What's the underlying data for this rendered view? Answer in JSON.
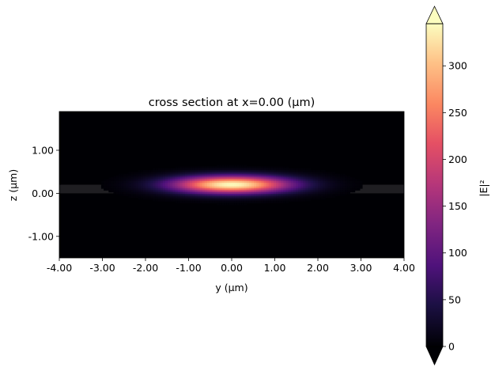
{
  "chart_data": {
    "type": "heatmap",
    "title": "cross section at x=0.00 (μm)",
    "xlabel": "y (μm)",
    "ylabel": "z (μm)",
    "xlim": [
      -4.0,
      4.0
    ],
    "ylim": [
      -1.5,
      1.9
    ],
    "xticks": [
      -4.0,
      -3.0,
      -2.0,
      -1.0,
      0.0,
      1.0,
      2.0,
      3.0,
      4.0
    ],
    "xtick_labels": [
      "-4.00",
      "-3.00",
      "-2.00",
      "-1.00",
      "0.00",
      "1.00",
      "2.00",
      "3.00",
      "4.00"
    ],
    "yticks": [
      -1.0,
      0.0,
      1.0
    ],
    "ytick_labels": [
      "-1.00",
      "0.00",
      "1.00"
    ],
    "colorbar": {
      "label": "|E|²",
      "range": [
        0,
        345
      ],
      "ticks": [
        0,
        50,
        100,
        150,
        200,
        250,
        300
      ],
      "tick_labels": [
        "0",
        "50",
        "100",
        "150",
        "200",
        "250",
        "300"
      ],
      "colormap": "magma",
      "extend": "both"
    },
    "field": {
      "peak": 345,
      "center": [
        0.0,
        0.2
      ],
      "sigma_y": 0.95,
      "sigma_z": 0.14,
      "waveguide_band": {
        "z": [
          0.0,
          0.2
        ],
        "color": "#1f1e22"
      },
      "background": "#000004"
    }
  }
}
